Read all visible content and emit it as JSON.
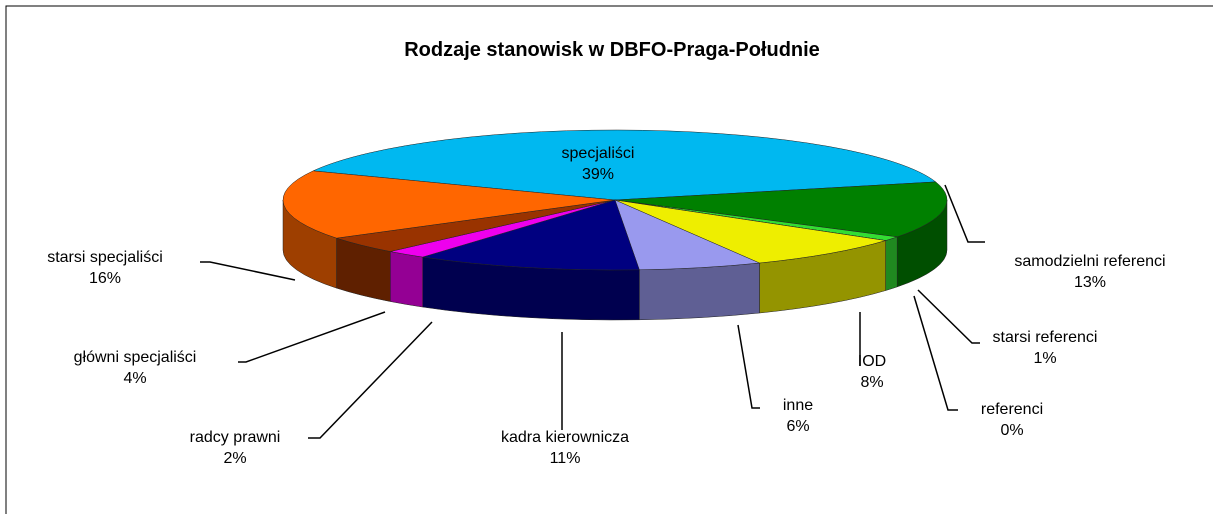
{
  "chart_data": {
    "type": "pie3d",
    "title": "Rodzaje stanowisk w DBFO-Praga-Południe",
    "categories": [
      "specjaliści",
      "samodzielni  referenci",
      "starsi referenci",
      "referenci",
      "IOD",
      "inne",
      "kadra kierownicza",
      "radcy prawni",
      "główni  specjaliści",
      "starsi specjaliści"
    ],
    "values": [
      39,
      13,
      1,
      0,
      8,
      6,
      11,
      2,
      4,
      16
    ],
    "value_labels": [
      "39%",
      "13%",
      "1%",
      "0%",
      "8%",
      "6%",
      "11%",
      "2%",
      "4%",
      "16%"
    ],
    "colors": [
      "#00b8f0",
      "#008000",
      "#33dd33",
      "#99cc00",
      "#eeee00",
      "#9999ee",
      "#000080",
      "#ee00ee",
      "#993300",
      "#ff6600"
    ]
  }
}
